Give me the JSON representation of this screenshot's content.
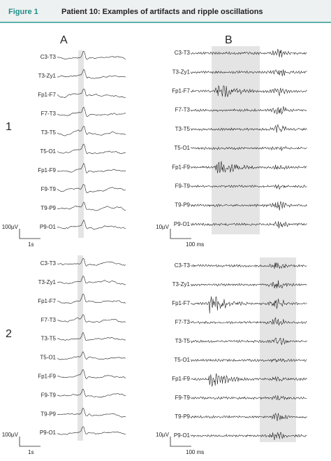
{
  "header": {
    "figure_label": "Figure 1",
    "title": "Patient 10: Examples of artifacts and ripple oscillations"
  },
  "columns": [
    "A",
    "B"
  ],
  "rows": [
    "1",
    "2"
  ],
  "panels": [
    {
      "channels": [
        "C3-T3",
        "T3-Zy1",
        "Fp1-F7",
        "F7-T3",
        "T3-T5",
        "T5-O1",
        "Fp1-F9",
        "F9-T9",
        "T9-P9",
        "P9-O1"
      ],
      "amplitude_scale": "100µV",
      "time_scale": "1s"
    },
    {
      "channels": [
        "C3-T3",
        "T3-Zy1",
        "Fp1-F7",
        "F7-T3",
        "T3-T5",
        "T5-O1",
        "Fp1-F9",
        "F9-T9",
        "T9-P9",
        "P9-O1"
      ],
      "amplitude_scale": "10µV",
      "time_scale": "100 ms"
    },
    {
      "channels": [
        "C3-T3",
        "T3-Zy1",
        "Fp1-F7",
        "F7-T3",
        "T3-T5",
        "T5-O1",
        "Fp1-F9",
        "F9-T9",
        "T9-P9",
        "P9-O1"
      ],
      "amplitude_scale": "100µV",
      "time_scale": "1s"
    },
    {
      "channels": [
        "C3-T3",
        "T3-Zy1",
        "Fp1-F7",
        "F7-T3",
        "T3-T5",
        "T5-O1",
        "Fp1-F9",
        "F9-T9",
        "T9-P9",
        "P9-O1"
      ],
      "amplitude_scale": "10µV",
      "time_scale": "100 ms"
    }
  ]
}
